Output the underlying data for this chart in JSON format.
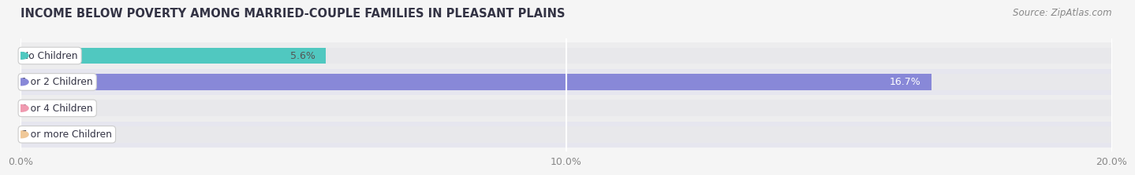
{
  "title": "INCOME BELOW POVERTY AMONG MARRIED-COUPLE FAMILIES IN PLEASANT PLAINS",
  "source": "Source: ZipAtlas.com",
  "categories": [
    "No Children",
    "1 or 2 Children",
    "3 or 4 Children",
    "5 or more Children"
  ],
  "values": [
    5.6,
    16.7,
    0.0,
    0.0
  ],
  "bar_colors": [
    "#50c8c0",
    "#8888d8",
    "#f09ab0",
    "#f0c898"
  ],
  "xlim": [
    0,
    20.0
  ],
  "xticks": [
    0.0,
    10.0,
    20.0
  ],
  "xtick_labels": [
    "0.0%",
    "10.0%",
    "20.0%"
  ],
  "title_fontsize": 10.5,
  "source_fontsize": 8.5,
  "bar_height": 0.62,
  "background_color": "#f5f5f5",
  "bar_bg_color": "#e8e8eb",
  "value_label_fontsize": 9,
  "value_label_colors": [
    "#555555",
    "#ffffff",
    "#555555",
    "#555555"
  ],
  "label_bg_color": "#ffffff",
  "title_color": "#333344",
  "source_color": "#888888",
  "tick_color": "#888888",
  "grid_color": "#ffffff",
  "row_bg_colors": [
    "#eeeeee",
    "#e8e8ee",
    "#eeeeee",
    "#e8e8ee"
  ]
}
